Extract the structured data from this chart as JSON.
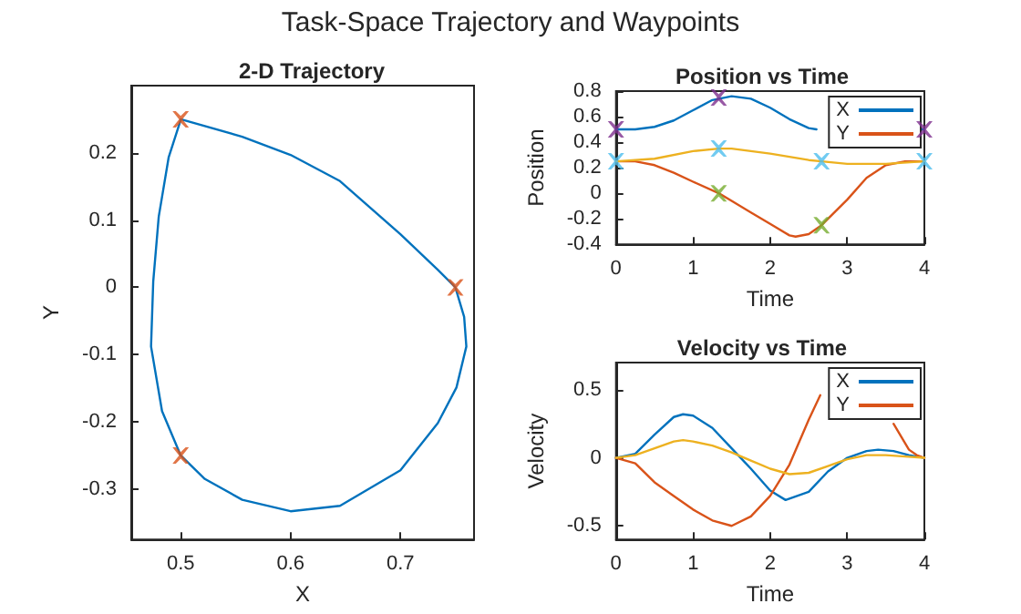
{
  "chart_data": [
    {
      "type": "line",
      "title": "2-D Trajectory",
      "annotations": [
        "Task-Space Trajectory and Waypoints"
      ],
      "xlabel": "X",
      "ylabel": "Y",
      "xlim": [
        0.455,
        0.767
      ],
      "xticks": [
        0.5,
        0.6,
        0.7
      ],
      "ylim": [
        -0.375,
        0.3
      ],
      "yticks": [
        -0.3,
        -0.2,
        -0.1,
        0,
        0.1,
        0.2
      ],
      "grid": false,
      "legend": false,
      "series": [
        {
          "type": "line",
          "color": "#0072bd",
          "marker": "none",
          "x": [
            0.5,
            0.556,
            0.6,
            0.645,
            0.7,
            0.734,
            0.75,
            0.758,
            0.76,
            0.751,
            0.734,
            0.7,
            0.645,
            0.6,
            0.556,
            0.522,
            0.5,
            0.483,
            0.473,
            0.475,
            0.48,
            0.489,
            0.5
          ],
          "values": [
            0.25,
            0.224,
            0.197,
            0.158,
            0.079,
            0.026,
            0,
            -0.044,
            -0.088,
            -0.149,
            -0.202,
            -0.272,
            -0.325,
            -0.333,
            -0.316,
            -0.285,
            -0.25,
            -0.184,
            -0.088,
            0.009,
            0.105,
            0.193,
            0.249
          ]
        },
        {
          "type": "scatter",
          "color": "#d95319",
          "marker": "cross",
          "x": [
            0.5,
            0.75,
            0.5
          ],
          "values": [
            0.25,
            0,
            -0.25
          ]
        }
      ]
    },
    {
      "type": "line",
      "title": "Position vs Time",
      "xlabel": "Time",
      "ylabel": "Position",
      "xlim": [
        0,
        4
      ],
      "xticks": [
        0,
        1,
        2,
        3,
        4
      ],
      "ylim": [
        -0.4,
        0.8
      ],
      "yticks": [
        -0.4,
        -0.2,
        0,
        0.2,
        0.4,
        0.6,
        0.8
      ],
      "grid": false,
      "legend": "top right",
      "series": [
        {
          "type": "line",
          "name": "X",
          "color": "#0072bd",
          "marker": "none",
          "x": [
            0,
            0.25,
            0.5,
            0.75,
            1,
            1.25,
            1.5,
            1.75,
            2,
            2.25,
            2.5,
            2.6,
            2.75,
            3.8,
            3.9,
            4
          ],
          "values": [
            0.5,
            0.5,
            0.52,
            0.57,
            0.65,
            0.73,
            0.76,
            0.74,
            0.67,
            0.58,
            0.51,
            0.5,
            null,
            null,
            0.5,
            0.5
          ]
        },
        {
          "type": "line",
          "name": "Y",
          "color": "#d95319",
          "marker": "none",
          "x": [
            0,
            0.25,
            0.5,
            0.75,
            1,
            1.333,
            1.5,
            1.75,
            2,
            2.25,
            2.33,
            2.5,
            2.667,
            3,
            3.25,
            3.5,
            3.75,
            4
          ],
          "values": [
            0.25,
            0.25,
            0.22,
            0.16,
            0.09,
            0,
            -0.06,
            -0.15,
            -0.24,
            -0.33,
            -0.34,
            -0.32,
            -0.25,
            -0.05,
            0.12,
            0.22,
            0.25,
            0.25
          ]
        },
        {
          "type": "line",
          "color": "#edb120",
          "marker": "none",
          "x": [
            0,
            0.5,
            1,
            1.333,
            1.5,
            2,
            2.5,
            2.667,
            3,
            3.5,
            4
          ],
          "values": [
            0.25,
            0.27,
            0.33,
            0.35,
            0.35,
            0.31,
            0.26,
            0.25,
            0.23,
            0.23,
            0.25
          ]
        },
        {
          "type": "scatter",
          "color": "#7e2f8e",
          "marker": "cross",
          "x": [
            0,
            1.333,
            4
          ],
          "values": [
            0.5,
            0.75,
            0.5
          ]
        },
        {
          "type": "scatter",
          "color": "#77ac30",
          "marker": "cross",
          "x": [
            1.333,
            2.667
          ],
          "values": [
            0,
            -0.25
          ]
        },
        {
          "type": "scatter",
          "color": "#4dbeee",
          "marker": "cross",
          "x": [
            0,
            1.333,
            2.667,
            4
          ],
          "values": [
            0.25,
            0.35,
            0.25,
            0.25
          ]
        }
      ]
    },
    {
      "type": "line",
      "title": "Velocity vs Time",
      "xlabel": "Time",
      "ylabel": "Velocity",
      "xlim": [
        0,
        4
      ],
      "xticks": [
        0,
        1,
        2,
        3,
        4
      ],
      "ylim": [
        -0.6,
        0.7
      ],
      "yticks": [
        -0.5,
        0,
        0.5
      ],
      "grid": false,
      "legend": "top right",
      "series": [
        {
          "type": "line",
          "name": "X",
          "color": "#0072bd",
          "marker": "none",
          "x": [
            0,
            0.25,
            0.5,
            0.75,
            0.87,
            1,
            1.25,
            1.5,
            1.75,
            2,
            2.2,
            2.5,
            2.75,
            3,
            3.25,
            3.4,
            3.6,
            3.8,
            4
          ],
          "values": [
            0,
            0.03,
            0.17,
            0.3,
            0.32,
            0.31,
            0.22,
            0.07,
            -0.08,
            -0.24,
            -0.31,
            -0.25,
            -0.1,
            0,
            0.05,
            0.06,
            0.05,
            0.02,
            0
          ]
        },
        {
          "type": "line",
          "name": "Y",
          "color": "#d95319",
          "marker": "none",
          "x": [
            0,
            0.25,
            0.5,
            0.75,
            1,
            1.25,
            1.5,
            1.75,
            2,
            2.25,
            2.5,
            2.65,
            2.75,
            3.5,
            3.6,
            3.8,
            3.9,
            4
          ],
          "values": [
            0,
            -0.04,
            -0.18,
            -0.28,
            -0.38,
            -0.46,
            -0.5,
            -0.43,
            -0.28,
            -0.05,
            0.28,
            0.46,
            null,
            null,
            0.25,
            0.06,
            0.02,
            0
          ]
        },
        {
          "type": "line",
          "color": "#edb120",
          "marker": "none",
          "x": [
            0,
            0.25,
            0.5,
            0.75,
            0.87,
            1,
            1.25,
            1.5,
            1.75,
            2,
            2.25,
            2.5,
            2.75,
            3,
            3.25,
            3.5,
            3.75,
            4
          ],
          "values": [
            0,
            0.02,
            0.07,
            0.12,
            0.13,
            0.12,
            0.09,
            0.04,
            -0.02,
            -0.08,
            -0.12,
            -0.11,
            -0.06,
            -0.01,
            0.02,
            0.02,
            0.01,
            0
          ]
        }
      ]
    }
  ]
}
